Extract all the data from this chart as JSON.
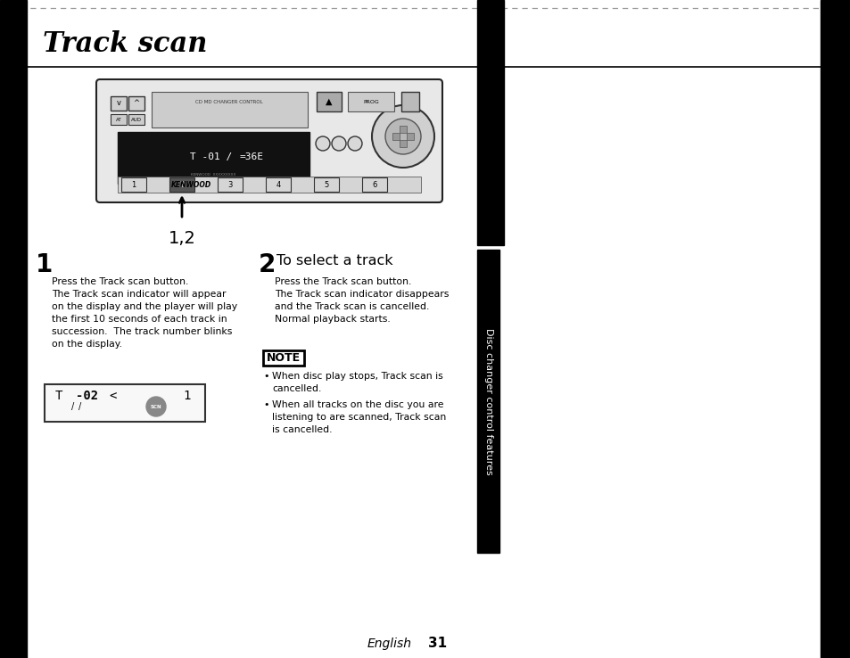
{
  "bg_color": "#ffffff",
  "title": "Track scan",
  "title_fontsize": 22,
  "body_fontsize": 7.8,
  "body_linespacing": 1.5,
  "step1_body": "Press the Track scan button.\nThe Track scan indicator will appear\non the display and the player will play\nthe first 10 seconds of each track in\nsuccession.  The track number blinks\non the display.",
  "step2_heading": "To select a track",
  "step2_body": "Press the Track scan button.\nThe Track scan indicator disappears\nand the Track scan is cancelled.\nNormal playback starts.",
  "note_label": "NOTE",
  "note_bullet1": "When disc play stops, Track scan is\n  cancelled.",
  "note_bullet2": "When all tracks on the disc you are\n  listening to are scanned, Track scan\n  is cancelled.",
  "label_12": "1,2",
  "side_label": "Disc changer control features",
  "footer_italic": "English",
  "footer_bold": "31"
}
